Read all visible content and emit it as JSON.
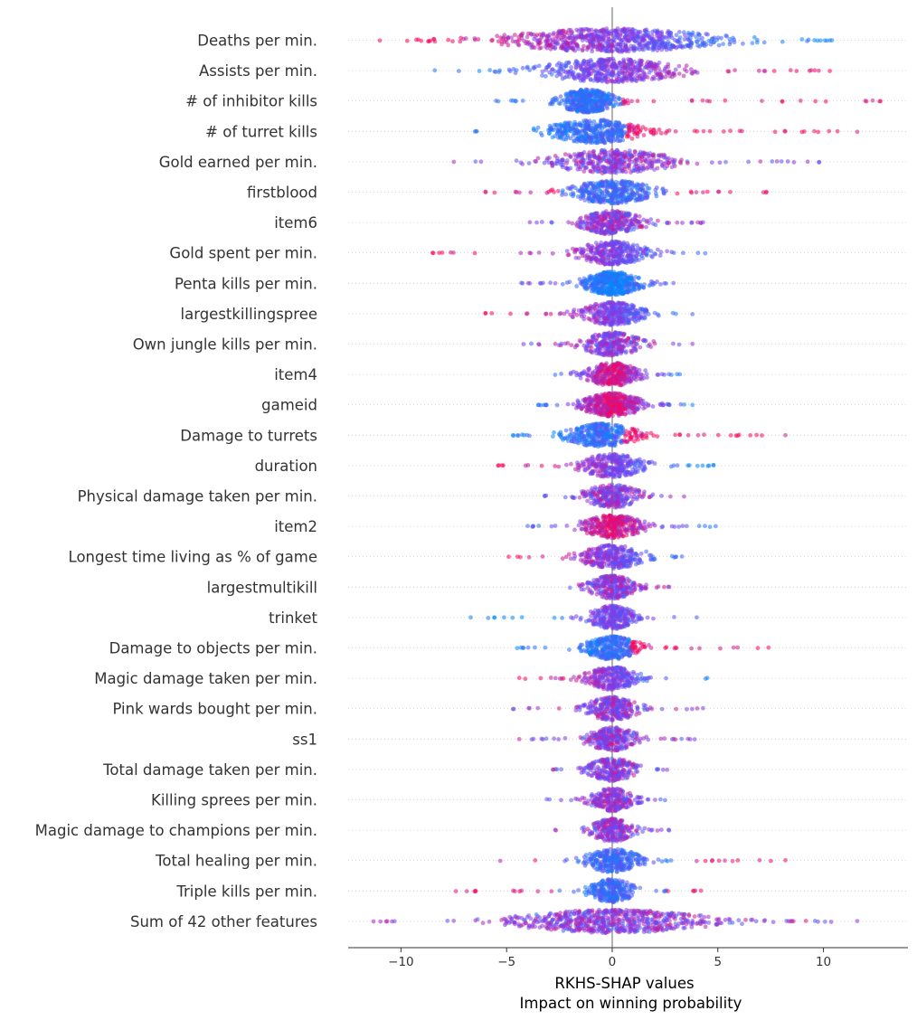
{
  "chart_data": {
    "type": "beeswarm",
    "xlabel": "RKHS-SHAP values",
    "xlabel_sub": "Impact on winning probability",
    "xlim": [
      -12.5,
      14
    ],
    "xticks": [
      -10,
      -5,
      0,
      5,
      10
    ],
    "xtick_labels": [
      "−10",
      "−5",
      "0",
      "5",
      "10"
    ],
    "colors": {
      "low": "#008bfb",
      "mid": "#7c3df0",
      "high": "#ff0052",
      "zero_line": "#999999",
      "axis": "#333333",
      "grid": "#cccccc"
    },
    "features": [
      {
        "name": "Deaths per min.",
        "min": -11.0,
        "max": 10.4,
        "center": 0,
        "spread": 4.5,
        "density": 2.5,
        "pattern": "high_left"
      },
      {
        "name": "Assists per min.",
        "min": -8.4,
        "max": 10.3,
        "center": 0,
        "spread": 3.0,
        "density": 1.7,
        "pattern": "high_right"
      },
      {
        "name": "# of inhibitor kills",
        "min": -5.5,
        "max": 12.7,
        "center": -1.2,
        "spread": 1.2,
        "density": 1.6,
        "pattern": "high_right_tail"
      },
      {
        "name": "# of turret kills",
        "min": -6.5,
        "max": 11.6,
        "center": -0.8,
        "spread": 2.0,
        "density": 1.5,
        "pattern": "high_right_tail"
      },
      {
        "name": "Gold earned per min.",
        "min": -7.5,
        "max": 9.8,
        "center": 0,
        "spread": 2.6,
        "density": 1.4,
        "pattern": "mixed"
      },
      {
        "name": "firstblood",
        "min": -6.0,
        "max": 7.3,
        "center": 0,
        "spread": 1.8,
        "density": 1.4,
        "pattern": "high_ends"
      },
      {
        "name": "item6",
        "min": -3.9,
        "max": 4.3,
        "center": 0,
        "spread": 1.3,
        "density": 1.2,
        "pattern": "mixed"
      },
      {
        "name": "Gold spent per min.",
        "min": -8.5,
        "max": 4.4,
        "center": 0,
        "spread": 1.5,
        "density": 1.2,
        "pattern": "high_left"
      },
      {
        "name": "Penta kills per min.",
        "min": -4.3,
        "max": 2.9,
        "center": 0,
        "spread": 1.2,
        "density": 1.6,
        "pattern": "low_center"
      },
      {
        "name": "largestkillingspree",
        "min": -6.0,
        "max": 3.8,
        "center": 0,
        "spread": 1.4,
        "density": 1.2,
        "pattern": "high_left"
      },
      {
        "name": "Own jungle kills per min.",
        "min": -4.2,
        "max": 3.8,
        "center": 0,
        "spread": 1.3,
        "density": 1.0,
        "pattern": "mixed"
      },
      {
        "name": "item4",
        "min": -2.7,
        "max": 3.2,
        "center": 0,
        "spread": 1.2,
        "density": 1.3,
        "pattern": "high_center"
      },
      {
        "name": "gameid",
        "min": -3.5,
        "max": 3.8,
        "center": 0,
        "spread": 1.3,
        "density": 1.7,
        "pattern": "high_center"
      },
      {
        "name": "Damage to turrets",
        "min": -4.7,
        "max": 8.2,
        "center": -0.5,
        "spread": 1.5,
        "density": 1.3,
        "pattern": "high_right_tail"
      },
      {
        "name": "duration",
        "min": -5.4,
        "max": 4.8,
        "center": 0,
        "spread": 1.4,
        "density": 1.1,
        "pattern": "high_left"
      },
      {
        "name": "Physical damage taken per min.",
        "min": -3.2,
        "max": 3.4,
        "center": 0,
        "spread": 1.2,
        "density": 1.0,
        "pattern": "mixed"
      },
      {
        "name": "item2",
        "min": -4.0,
        "max": 4.9,
        "center": 0,
        "spread": 1.3,
        "density": 1.2,
        "pattern": "high_center"
      },
      {
        "name": "Longest time living as % of game",
        "min": -4.9,
        "max": 3.3,
        "center": 0,
        "spread": 1.4,
        "density": 1.1,
        "pattern": "high_left"
      },
      {
        "name": "largestmultikill",
        "min": -2.0,
        "max": 2.7,
        "center": 0,
        "spread": 1.0,
        "density": 1.0,
        "pattern": "mixed"
      },
      {
        "name": "trinket",
        "min": -6.7,
        "max": 4.0,
        "center": 0,
        "spread": 1.0,
        "density": 1.0,
        "pattern": "low_left"
      },
      {
        "name": "Damage to objects per min.",
        "min": -4.5,
        "max": 7.4,
        "center": 0,
        "spread": 1.2,
        "density": 1.2,
        "pattern": "high_right_tail"
      },
      {
        "name": "Magic damage taken per min.",
        "min": -4.4,
        "max": 4.5,
        "center": 0,
        "spread": 1.1,
        "density": 1.0,
        "pattern": "high_left"
      },
      {
        "name": "Pink wards bought per min.",
        "min": -4.7,
        "max": 4.3,
        "center": 0,
        "spread": 1.1,
        "density": 1.0,
        "pattern": "mixed"
      },
      {
        "name": "ss1",
        "min": -4.4,
        "max": 3.9,
        "center": 0,
        "spread": 1.1,
        "density": 1.0,
        "pattern": "mixed"
      },
      {
        "name": "Total damage taken per min.",
        "min": -2.8,
        "max": 2.6,
        "center": 0,
        "spread": 1.0,
        "density": 0.9,
        "pattern": "mixed"
      },
      {
        "name": "Killing sprees per min.",
        "min": -3.1,
        "max": 2.5,
        "center": 0,
        "spread": 0.9,
        "density": 0.9,
        "pattern": "mixed"
      },
      {
        "name": "Magic damage to champions per min.",
        "min": -2.7,
        "max": 2.7,
        "center": 0,
        "spread": 0.9,
        "density": 0.9,
        "pattern": "mixed"
      },
      {
        "name": "Total healing per min.",
        "min": -5.3,
        "max": 8.2,
        "center": 0,
        "spread": 1.2,
        "density": 1.1,
        "pattern": "high_ends"
      },
      {
        "name": "Triple kills per min.",
        "min": -7.4,
        "max": 4.2,
        "center": 0,
        "spread": 1.0,
        "density": 1.0,
        "pattern": "high_ends"
      },
      {
        "name": "Sum of 42 other features",
        "min": -11.3,
        "max": 11.6,
        "center": 0,
        "spread": 4.0,
        "density": 2.3,
        "pattern": "mixed"
      }
    ]
  }
}
